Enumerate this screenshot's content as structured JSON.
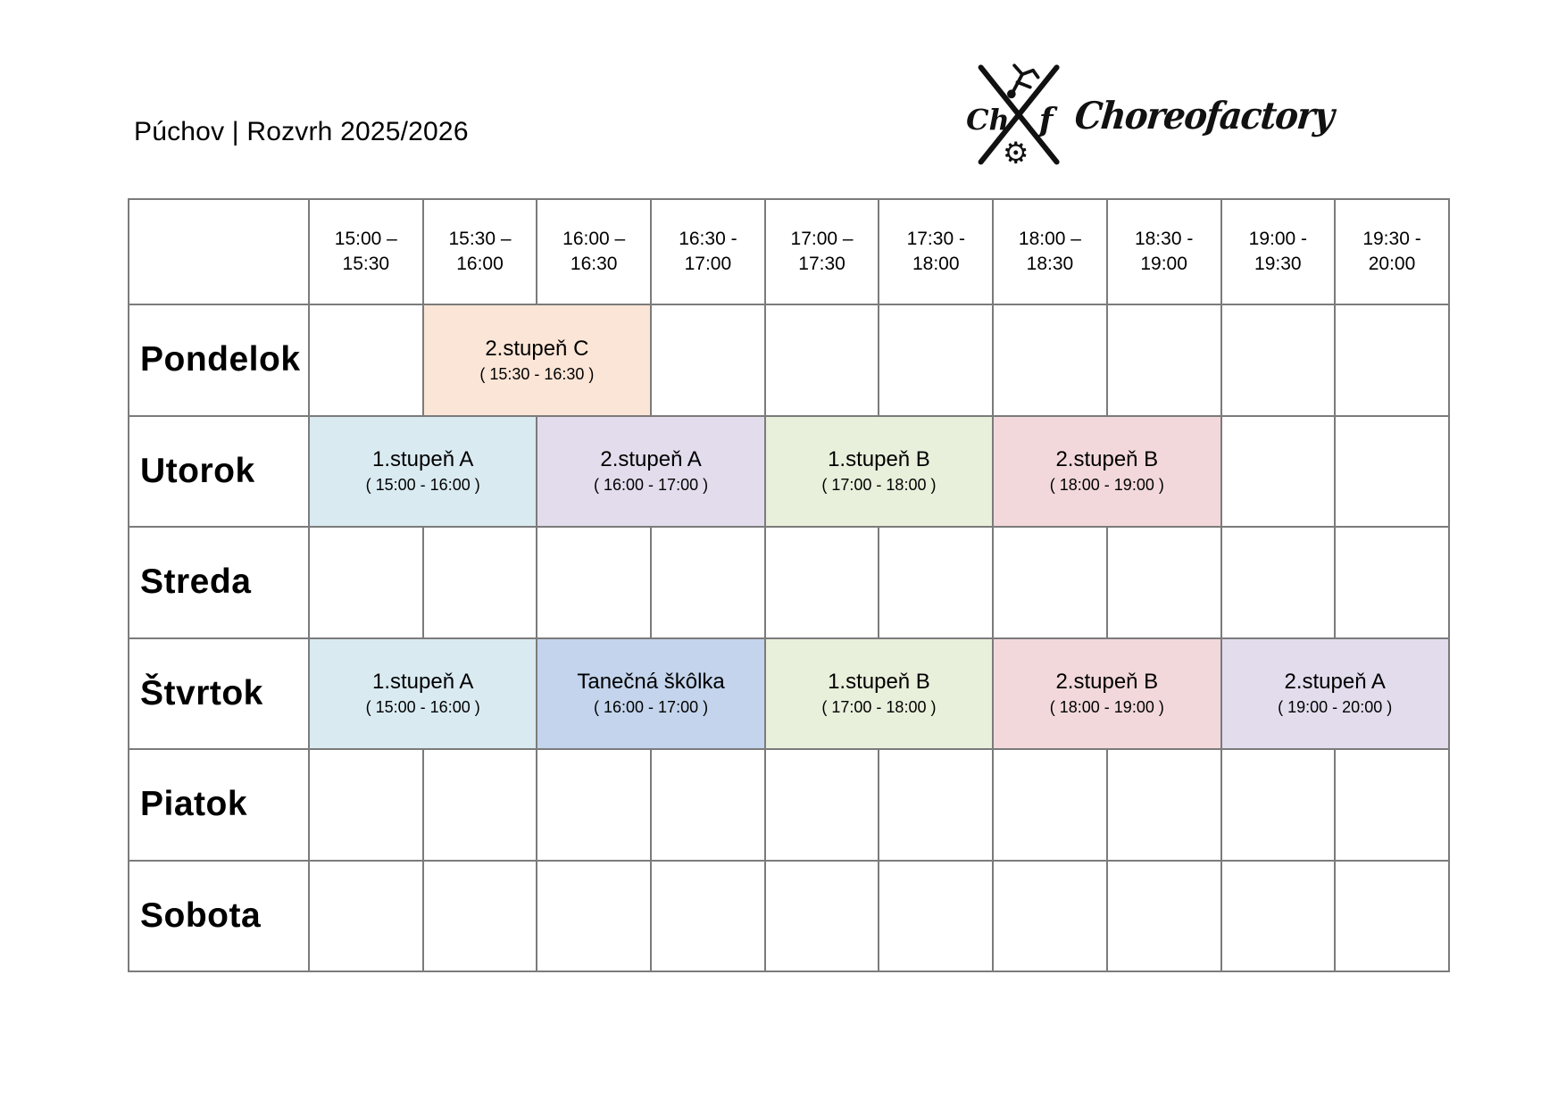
{
  "page": {
    "title": "Púchov | Rozvrh 2025/2026"
  },
  "logo": {
    "name": "Choreofactory",
    "mark_left": "Ch",
    "mark_right": "f",
    "gear_glyph": "⚙"
  },
  "schedule": {
    "border_color": "#7b7b7b",
    "time_slots": [
      "15:00 –\n15:30",
      "15:30 –\n16:00",
      "16:00 –\n16:30",
      "16:30 -\n17:00",
      "17:00 –\n17:30",
      "17:30 -\n18:00",
      "18:00 –\n18:30",
      "18:30 -\n19:00",
      "19:00 -\n19:30",
      "19:30 -\n20:00"
    ],
    "event_colors": {
      "peach": "#FBE5D6",
      "light_blue": "#D9EAF1",
      "lavender": "#E2DCEC",
      "green": "#E8EFDB",
      "pink": "#F2D8DB",
      "medium_blue": "#C3D4EC"
    },
    "days": [
      {
        "label": "Pondelok",
        "events": [
          {
            "title": "2.stupeň C",
            "time": "( 15:30 - 16:30 )",
            "col": 2,
            "span": 2,
            "color": "#FBE5D6"
          }
        ]
      },
      {
        "label": "Utorok",
        "events": [
          {
            "title": "1.stupeň A",
            "time": "( 15:00 - 16:00 )",
            "col": 1,
            "span": 2,
            "color": "#D9EAF1"
          },
          {
            "title": "2.stupeň A",
            "time": "( 16:00 - 17:00 )",
            "col": 3,
            "span": 2,
            "color": "#E2DCEC"
          },
          {
            "title": "1.stupeň B",
            "time": "( 17:00 - 18:00 )",
            "col": 5,
            "span": 2,
            "color": "#E8EFDB"
          },
          {
            "title": "2.stupeň B",
            "time": "( 18:00 - 19:00 )",
            "col": 7,
            "span": 2,
            "color": "#F2D8DB"
          }
        ]
      },
      {
        "label": "Streda",
        "events": []
      },
      {
        "label": "Štvrtok",
        "events": [
          {
            "title": "1.stupeň A",
            "time": "( 15:00 - 16:00 )",
            "col": 1,
            "span": 2,
            "color": "#D9EAF1"
          },
          {
            "title": "Tanečná škôlka",
            "time": "( 16:00 - 17:00 )",
            "col": 3,
            "span": 2,
            "color": "#C3D4EC"
          },
          {
            "title": "1.stupeň B",
            "time": "( 17:00 - 18:00 )",
            "col": 5,
            "span": 2,
            "color": "#E8EFDB"
          },
          {
            "title": "2.stupeň B",
            "time": "( 18:00 - 19:00 )",
            "col": 7,
            "span": 2,
            "color": "#F2D8DB"
          },
          {
            "title": "2.stupeň A",
            "time": "( 19:00 - 20:00 )",
            "col": 9,
            "span": 2,
            "color": "#E2DCEC"
          }
        ]
      },
      {
        "label": "Piatok",
        "events": []
      },
      {
        "label": "Sobota",
        "events": []
      }
    ]
  }
}
